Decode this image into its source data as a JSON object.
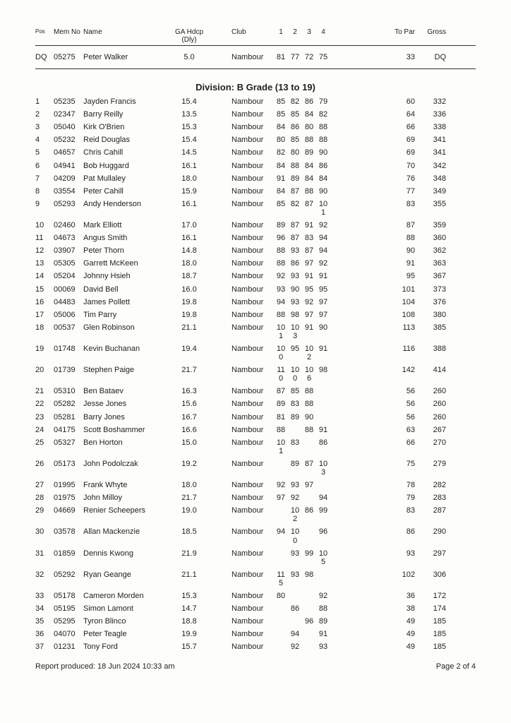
{
  "header": {
    "pos": "Pos",
    "memNo": "Mem No",
    "name": "Name",
    "hdcp_top": "GA Hdcp",
    "hdcp_bot": "(Dly)",
    "club": "Club",
    "rounds": [
      "1",
      "2",
      "3",
      "4"
    ],
    "toPar": "To Par",
    "gross": "Gross"
  },
  "dqRow": {
    "pos": "DQ",
    "mem": "05275",
    "name": "Peter Walker",
    "hdcp": "5.0",
    "club": "Nambour",
    "r": [
      "81",
      "77",
      "72",
      "75"
    ],
    "toPar": "33",
    "gross": "DQ"
  },
  "divisionTitle": "Division: B Grade (13 to 19)",
  "rows": [
    {
      "pos": "1",
      "mem": "05235",
      "name": "Jayden Francis",
      "hdcp": "15.4",
      "club": "Nambour",
      "r": [
        "85",
        "82",
        "86",
        "79"
      ],
      "toPar": "60",
      "gross": "332"
    },
    {
      "pos": "2",
      "mem": "02347",
      "name": "Barry Reilly",
      "hdcp": "13.5",
      "club": "Nambour",
      "r": [
        "85",
        "85",
        "84",
        "82"
      ],
      "toPar": "64",
      "gross": "336"
    },
    {
      "pos": "3",
      "mem": "05040",
      "name": "Kirk O'Brien",
      "hdcp": "15.3",
      "club": "Nambour",
      "r": [
        "84",
        "86",
        "80",
        "88"
      ],
      "toPar": "66",
      "gross": "338"
    },
    {
      "pos": "4",
      "mem": "05232",
      "name": "Reid Douglas",
      "hdcp": "15.4",
      "club": "Nambour",
      "r": [
        "80",
        "85",
        "88",
        "88"
      ],
      "toPar": "69",
      "gross": "341"
    },
    {
      "pos": "5",
      "mem": "04657",
      "name": "Chris Cahill",
      "hdcp": "14.5",
      "club": "Nambour",
      "r": [
        "82",
        "80",
        "89",
        "90"
      ],
      "toPar": "69",
      "gross": "341"
    },
    {
      "pos": "6",
      "mem": "04941",
      "name": "Bob Huggard",
      "hdcp": "16.1",
      "club": "Nambour",
      "r": [
        "84",
        "88",
        "84",
        "86"
      ],
      "toPar": "70",
      "gross": "342"
    },
    {
      "pos": "7",
      "mem": "04209",
      "name": "Pat Mullaley",
      "hdcp": "18.0",
      "club": "Nambour",
      "r": [
        "91",
        "89",
        "84",
        "84"
      ],
      "toPar": "76",
      "gross": "348"
    },
    {
      "pos": "8",
      "mem": "03554",
      "name": "Peter Cahill",
      "hdcp": "15.9",
      "club": "Nambour",
      "r": [
        "84",
        "87",
        "88",
        "90"
      ],
      "toPar": "77",
      "gross": "349"
    },
    {
      "pos": "9",
      "mem": "05293",
      "name": "Andy Henderson",
      "hdcp": "16.1",
      "club": "Nambour",
      "r": [
        "85",
        "82",
        "87",
        "10\n1"
      ],
      "toPar": "83",
      "gross": "355"
    },
    {
      "pos": "10",
      "mem": "02460",
      "name": "Mark Elliott",
      "hdcp": "17.0",
      "club": "Nambour",
      "r": [
        "89",
        "87",
        "91",
        "92"
      ],
      "toPar": "87",
      "gross": "359"
    },
    {
      "pos": "11",
      "mem": "04673",
      "name": "Angus Smith",
      "hdcp": "16.1",
      "club": "Nambour",
      "r": [
        "96",
        "87",
        "83",
        "94"
      ],
      "toPar": "88",
      "gross": "360"
    },
    {
      "pos": "12",
      "mem": "03907",
      "name": "Peter Thorn",
      "hdcp": "14.8",
      "club": "Nambour",
      "r": [
        "88",
        "93",
        "87",
        "94"
      ],
      "toPar": "90",
      "gross": "362"
    },
    {
      "pos": "13",
      "mem": "05305",
      "name": "Garrett McKeen",
      "hdcp": "18.0",
      "club": "Nambour",
      "r": [
        "88",
        "86",
        "97",
        "92"
      ],
      "toPar": "91",
      "gross": "363"
    },
    {
      "pos": "14",
      "mem": "05204",
      "name": "Johnny Hsieh",
      "hdcp": "18.7",
      "club": "Nambour",
      "r": [
        "92",
        "93",
        "91",
        "91"
      ],
      "toPar": "95",
      "gross": "367"
    },
    {
      "pos": "15",
      "mem": "00069",
      "name": "David Bell",
      "hdcp": "16.0",
      "club": "Nambour",
      "r": [
        "93",
        "90",
        "95",
        "95"
      ],
      "toPar": "101",
      "gross": "373"
    },
    {
      "pos": "16",
      "mem": "04483",
      "name": "James Pollett",
      "hdcp": "19.8",
      "club": "Nambour",
      "r": [
        "94",
        "93",
        "92",
        "97"
      ],
      "toPar": "104",
      "gross": "376"
    },
    {
      "pos": "17",
      "mem": "05006",
      "name": "Tim Parry",
      "hdcp": "19.8",
      "club": "Nambour",
      "r": [
        "88",
        "98",
        "97",
        "97"
      ],
      "toPar": "108",
      "gross": "380"
    },
    {
      "pos": "18",
      "mem": "00537",
      "name": "Glen Robinson",
      "hdcp": "21.1",
      "club": "Nambour",
      "r": [
        "10\n1",
        "10\n3",
        "91",
        "90"
      ],
      "toPar": "113",
      "gross": "385"
    },
    {
      "pos": "19",
      "mem": "01748",
      "name": "Kevin Buchanan",
      "hdcp": "19.4",
      "club": "Nambour",
      "r": [
        "10\n0",
        "95",
        "10\n2",
        "91"
      ],
      "toPar": "116",
      "gross": "388"
    },
    {
      "pos": "20",
      "mem": "01739",
      "name": "Stephen Paige",
      "hdcp": "21.7",
      "club": "Nambour",
      "r": [
        "11\n0",
        "10\n0",
        "10\n6",
        "98"
      ],
      "toPar": "142",
      "gross": "414"
    },
    {
      "pos": "21",
      "mem": "05310",
      "name": "Ben Bataev",
      "hdcp": "16.3",
      "club": "Nambour",
      "r": [
        "87",
        "85",
        "88",
        ""
      ],
      "toPar": "56",
      "gross": "260"
    },
    {
      "pos": "22",
      "mem": "05282",
      "name": "Jesse Jones",
      "hdcp": "15.6",
      "club": "Nambour",
      "r": [
        "89",
        "83",
        "88",
        ""
      ],
      "toPar": "56",
      "gross": "260"
    },
    {
      "pos": "23",
      "mem": "05281",
      "name": "Barry Jones",
      "hdcp": "16.7",
      "club": "Nambour",
      "r": [
        "81",
        "89",
        "90",
        ""
      ],
      "toPar": "56",
      "gross": "260"
    },
    {
      "pos": "24",
      "mem": "04175",
      "name": "Scott Boshammer",
      "hdcp": "16.6",
      "club": "Nambour",
      "r": [
        "88",
        "",
        "88",
        "91"
      ],
      "toPar": "63",
      "gross": "267"
    },
    {
      "pos": "25",
      "mem": "05327",
      "name": "Ben Horton",
      "hdcp": "15.0",
      "club": "Nambour",
      "r": [
        "10\n1",
        "83",
        "",
        "86"
      ],
      "toPar": "66",
      "gross": "270"
    },
    {
      "pos": "26",
      "mem": "05173",
      "name": "John Podolczak",
      "hdcp": "19.2",
      "club": "Nambour",
      "r": [
        "",
        "89",
        "87",
        "10\n3"
      ],
      "toPar": "75",
      "gross": "279"
    },
    {
      "pos": "27",
      "mem": "01995",
      "name": "Frank Whyte",
      "hdcp": "18.0",
      "club": "Nambour",
      "r": [
        "92",
        "93",
        "97",
        ""
      ],
      "toPar": "78",
      "gross": "282"
    },
    {
      "pos": "28",
      "mem": "01975",
      "name": "John Milloy",
      "hdcp": "21.7",
      "club": "Nambour",
      "r": [
        "97",
        "92",
        "",
        "94"
      ],
      "toPar": "79",
      "gross": "283"
    },
    {
      "pos": "29",
      "mem": "04669",
      "name": "Renier Scheepers",
      "hdcp": "19.0",
      "club": "Nambour",
      "r": [
        "",
        "10\n2",
        "86",
        "99"
      ],
      "toPar": "83",
      "gross": "287"
    },
    {
      "pos": "30",
      "mem": "03578",
      "name": "Allan Mackenzie",
      "hdcp": "18.5",
      "club": "Nambour",
      "r": [
        "94",
        "10\n0",
        "",
        "96"
      ],
      "toPar": "86",
      "gross": "290"
    },
    {
      "pos": "31",
      "mem": "01859",
      "name": "Dennis Kwong",
      "hdcp": "21.9",
      "club": "Nambour",
      "r": [
        "",
        "93",
        "99",
        "10\n5"
      ],
      "toPar": "93",
      "gross": "297"
    },
    {
      "pos": "32",
      "mem": "05292",
      "name": "Ryan Geange",
      "hdcp": "21.1",
      "club": "Nambour",
      "r": [
        "11\n5",
        "93",
        "98",
        ""
      ],
      "toPar": "102",
      "gross": "306"
    },
    {
      "pos": "33",
      "mem": "05178",
      "name": "Cameron Morden",
      "hdcp": "15.3",
      "club": "Nambour",
      "r": [
        "80",
        "",
        "",
        "92"
      ],
      "toPar": "36",
      "gross": "172"
    },
    {
      "pos": "34",
      "mem": "05195",
      "name": "Simon Lamont",
      "hdcp": "14.7",
      "club": "Nambour",
      "r": [
        "",
        "86",
        "",
        "88"
      ],
      "toPar": "38",
      "gross": "174"
    },
    {
      "pos": "35",
      "mem": "05295",
      "name": "Tyron Blinco",
      "hdcp": "18.8",
      "club": "Nambour",
      "r": [
        "",
        "",
        "96",
        "89"
      ],
      "toPar": "49",
      "gross": "185"
    },
    {
      "pos": "36",
      "mem": "04070",
      "name": "Peter Teagle",
      "hdcp": "19.9",
      "club": "Nambour",
      "r": [
        "",
        "94",
        "",
        "91"
      ],
      "toPar": "49",
      "gross": "185"
    },
    {
      "pos": "37",
      "mem": "01231",
      "name": "Tony Ford",
      "hdcp": "15.7",
      "club": "Nambour",
      "r": [
        "",
        "92",
        "",
        "93"
      ],
      "toPar": "49",
      "gross": "185"
    }
  ],
  "footer": {
    "left": "Report produced:   18 Jun 2024 10:33 am",
    "right": "Page 2 of 4"
  }
}
